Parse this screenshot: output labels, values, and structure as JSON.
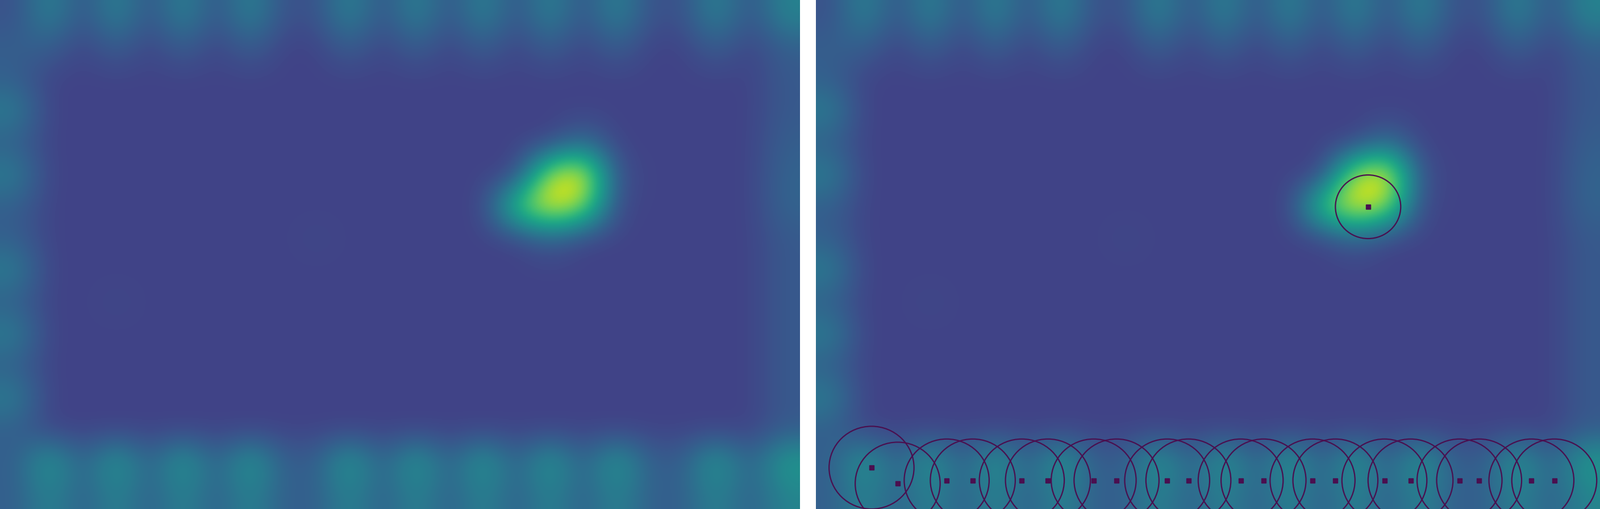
{
  "chart_data": {
    "type": "heatmap",
    "tick_labels": false,
    "color_range": [
      0,
      1
    ],
    "cells": [
      [
        0.25,
        0.45,
        0.25,
        0.45,
        0.25,
        0.45,
        0.25,
        0.45,
        0.25,
        0.25,
        0.45,
        0.25,
        0.45,
        0.25,
        0.45,
        0.25,
        0.45,
        0.25,
        0.45,
        0.25,
        0.25,
        0.45,
        0.25,
        0.45
      ],
      [
        0.3,
        0.3,
        0.2,
        0.3,
        0.2,
        0.3,
        0.2,
        0.3,
        0.2,
        0.2,
        0.3,
        0.2,
        0.3,
        0.2,
        0.3,
        0.2,
        0.3,
        0.2,
        0.3,
        0.2,
        0.2,
        0.3,
        0.2,
        0.3
      ],
      [
        0.3,
        0.2,
        0.2,
        0.2,
        0.2,
        0.2,
        0.2,
        0.2,
        0.2,
        0.2,
        0.2,
        0.2,
        0.2,
        0.2,
        0.2,
        0.2,
        0.2,
        0.2,
        0.2,
        0.2,
        0.2,
        0.2,
        0.2,
        0.28
      ],
      [
        0.42,
        0.2,
        0.2,
        0.2,
        0.2,
        0.2,
        0.2,
        0.2,
        0.2,
        0.2,
        0.2,
        0.2,
        0.2,
        0.2,
        0.2,
        0.2,
        0.2,
        0.2,
        0.2,
        0.2,
        0.2,
        0.2,
        0.2,
        0.28
      ],
      [
        0.3,
        0.2,
        0.2,
        0.2,
        0.2,
        0.2,
        0.2,
        0.2,
        0.2,
        0.2,
        0.2,
        0.2,
        0.2,
        0.2,
        0.2,
        0.2,
        0.2,
        0.35,
        0.2,
        0.2,
        0.2,
        0.2,
        0.2,
        0.3
      ],
      [
        0.42,
        0.2,
        0.2,
        0.2,
        0.2,
        0.2,
        0.2,
        0.2,
        0.2,
        0.2,
        0.2,
        0.2,
        0.2,
        0.2,
        0.2,
        0.2,
        0.9,
        1.0,
        0.25,
        0.2,
        0.2,
        0.2,
        0.2,
        0.32
      ],
      [
        0.3,
        0.2,
        0.2,
        0.2,
        0.2,
        0.2,
        0.2,
        0.2,
        0.2,
        0.2,
        0.2,
        0.2,
        0.2,
        0.2,
        0.2,
        0.75,
        1.0,
        0.85,
        0.22,
        0.2,
        0.2,
        0.2,
        0.2,
        0.32
      ],
      [
        0.3,
        0.2,
        0.2,
        0.2,
        0.2,
        0.2,
        0.2,
        0.2,
        0.2,
        0.22,
        0.2,
        0.2,
        0.2,
        0.2,
        0.2,
        0.2,
        0.3,
        0.2,
        0.2,
        0.2,
        0.2,
        0.2,
        0.2,
        0.28
      ],
      [
        0.42,
        0.2,
        0.2,
        0.2,
        0.2,
        0.2,
        0.2,
        0.2,
        0.2,
        0.2,
        0.2,
        0.2,
        0.2,
        0.2,
        0.2,
        0.2,
        0.2,
        0.2,
        0.2,
        0.2,
        0.2,
        0.2,
        0.2,
        0.28
      ],
      [
        0.3,
        0.2,
        0.2,
        0.22,
        0.2,
        0.2,
        0.2,
        0.2,
        0.2,
        0.2,
        0.2,
        0.2,
        0.2,
        0.2,
        0.2,
        0.2,
        0.2,
        0.2,
        0.2,
        0.2,
        0.2,
        0.2,
        0.2,
        0.28
      ],
      [
        0.42,
        0.2,
        0.2,
        0.2,
        0.2,
        0.2,
        0.2,
        0.2,
        0.2,
        0.2,
        0.2,
        0.2,
        0.2,
        0.2,
        0.2,
        0.2,
        0.2,
        0.2,
        0.2,
        0.2,
        0.2,
        0.2,
        0.2,
        0.28
      ],
      [
        0.3,
        0.2,
        0.2,
        0.2,
        0.2,
        0.2,
        0.2,
        0.2,
        0.2,
        0.2,
        0.2,
        0.2,
        0.2,
        0.2,
        0.2,
        0.2,
        0.2,
        0.2,
        0.2,
        0.2,
        0.2,
        0.2,
        0.2,
        0.28
      ],
      [
        0.42,
        0.2,
        0.2,
        0.2,
        0.2,
        0.2,
        0.2,
        0.2,
        0.2,
        0.2,
        0.2,
        0.2,
        0.2,
        0.2,
        0.2,
        0.2,
        0.2,
        0.2,
        0.2,
        0.2,
        0.2,
        0.2,
        0.2,
        0.28
      ],
      [
        0.3,
        0.2,
        0.2,
        0.2,
        0.2,
        0.2,
        0.2,
        0.2,
        0.2,
        0.2,
        0.2,
        0.2,
        0.2,
        0.2,
        0.2,
        0.2,
        0.2,
        0.2,
        0.2,
        0.2,
        0.2,
        0.2,
        0.2,
        0.28
      ],
      [
        0.3,
        0.55,
        0.3,
        0.55,
        0.3,
        0.55,
        0.3,
        0.55,
        0.3,
        0.3,
        0.55,
        0.3,
        0.55,
        0.3,
        0.55,
        0.3,
        0.55,
        0.3,
        0.55,
        0.3,
        0.3,
        0.55,
        0.3,
        0.55
      ],
      [
        0.3,
        0.45,
        0.3,
        0.45,
        0.3,
        0.45,
        0.3,
        0.45,
        0.3,
        0.3,
        0.45,
        0.3,
        0.45,
        0.3,
        0.45,
        0.3,
        0.45,
        0.3,
        0.45,
        0.3,
        0.3,
        0.45,
        0.3,
        0.45
      ]
    ],
    "detections": [
      {
        "x": 16.4,
        "y": 6.0,
        "r": 1.0
      },
      {
        "x": 1.2,
        "y": 14.2,
        "r": 1.3
      },
      {
        "x": 2.0,
        "y": 14.7,
        "r": 1.3
      },
      {
        "x": 3.5,
        "y": 14.6,
        "r": 1.3
      },
      {
        "x": 4.3,
        "y": 14.6,
        "r": 1.3
      },
      {
        "x": 5.8,
        "y": 14.6,
        "r": 1.3
      },
      {
        "x": 6.6,
        "y": 14.6,
        "r": 1.3
      },
      {
        "x": 8.0,
        "y": 14.6,
        "r": 1.3
      },
      {
        "x": 8.7,
        "y": 14.6,
        "r": 1.3
      },
      {
        "x": 10.25,
        "y": 14.6,
        "r": 1.3
      },
      {
        "x": 10.9,
        "y": 14.6,
        "r": 1.3
      },
      {
        "x": 12.5,
        "y": 14.6,
        "r": 1.3
      },
      {
        "x": 13.2,
        "y": 14.6,
        "r": 1.3
      },
      {
        "x": 14.7,
        "y": 14.6,
        "r": 1.3
      },
      {
        "x": 15.4,
        "y": 14.6,
        "r": 1.3
      },
      {
        "x": 16.9,
        "y": 14.6,
        "r": 1.3
      },
      {
        "x": 17.7,
        "y": 14.6,
        "r": 1.3
      },
      {
        "x": 19.2,
        "y": 14.6,
        "r": 1.3
      },
      {
        "x": 19.8,
        "y": 14.6,
        "r": 1.3
      },
      {
        "x": 21.4,
        "y": 14.6,
        "r": 1.3
      },
      {
        "x": 22.1,
        "y": 14.6,
        "r": 1.3
      }
    ]
  }
}
